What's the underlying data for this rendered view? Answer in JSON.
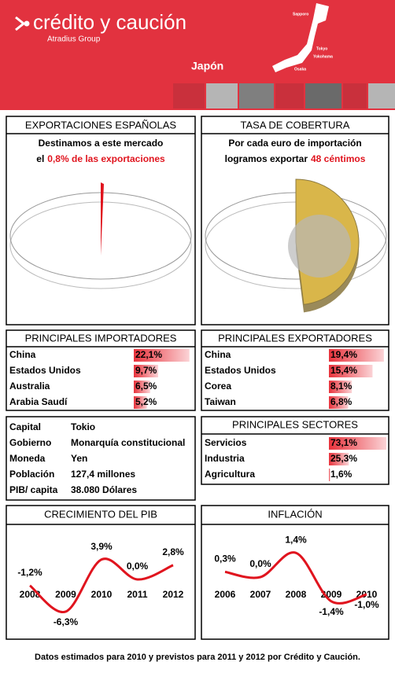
{
  "header": {
    "brand": "crédito y caución",
    "group": "Atradius Group",
    "country": "Japón",
    "cities": [
      "Sapporo",
      "Tokyo",
      "Yokohama",
      "Osaka"
    ]
  },
  "exports_panel": {
    "title": "EXPORTACIONES ESPAÑOLAS",
    "text_line1": "Destinamos a este mercado",
    "text_line2": "el",
    "highlight": "0,8% de las exportaciones"
  },
  "coverage_panel": {
    "title": "TASA DE COBERTURA",
    "text_line1": "Por cada euro de importación",
    "text_line2": "logramos exportar",
    "highlight": "48 céntimos"
  },
  "info_table": {
    "rows": [
      [
        "Capital",
        "Tokio"
      ],
      [
        "Gobierno",
        "Monarquía constitucional"
      ],
      [
        "Moneda",
        "Yen"
      ],
      [
        "Población",
        "127,4 millones"
      ],
      [
        "PIB/ capita",
        "38.080 Dólares"
      ]
    ]
  },
  "chart_data": [
    {
      "type": "pie",
      "values": [
        0.8
      ],
      "color": "#e0141e"
    },
    {
      "type": "pie",
      "values": [
        48
      ],
      "color": "#d9b64a"
    },
    {
      "type": "bar",
      "orientation": "horizontal",
      "title": "PRINCIPALES IMPORTADORES",
      "categories": [
        "China",
        "Estados Unidos",
        "Australia",
        "Arabia Saudí"
      ],
      "values": [
        22.1,
        9.7,
        6.5,
        5.2
      ],
      "value_labels": [
        "22,1%",
        "9,7%",
        "6,5%",
        "5,2%"
      ],
      "color": "#e8333c"
    },
    {
      "type": "bar",
      "orientation": "horizontal",
      "title": "PRINCIPALES EXPORTADORES",
      "categories": [
        "China",
        "Estados Unidos",
        "Corea",
        "Taiwan"
      ],
      "values": [
        19.4,
        15.4,
        8.1,
        6.8
      ],
      "value_labels": [
        "19,4%",
        "15,4%",
        "8,1%",
        "6,8%"
      ],
      "color": "#e8333c"
    },
    {
      "type": "bar",
      "orientation": "horizontal",
      "title": "PRINCIPALES SECTORES",
      "categories": [
        "Servicios",
        "Industria",
        "Agricultura"
      ],
      "values": [
        73.1,
        25.3,
        1.6
      ],
      "value_labels": [
        "73,1%",
        "25,3%",
        "1,6%"
      ],
      "color": "#e8333c"
    },
    {
      "type": "line",
      "title": "CRECIMIENTO DEL PIB",
      "categories": [
        "2008",
        "2009",
        "2010",
        "2011",
        "2012"
      ],
      "values": [
        -1.2,
        -6.3,
        3.9,
        0.0,
        2.8
      ],
      "value_labels": [
        "-1,2%",
        "-6,3%",
        "3,9%",
        "0,0%",
        "2,8%"
      ],
      "ylim": [
        -8,
        5
      ],
      "color": "#e0141e"
    },
    {
      "type": "line",
      "title": "INFLACIÓN",
      "categories": [
        "2006",
        "2007",
        "2008",
        "2009",
        "2010"
      ],
      "values": [
        0.3,
        0.0,
        1.4,
        -1.4,
        -1.0
      ],
      "value_labels": [
        "0,3%",
        "0,0%",
        "1,4%",
        "-1,4%",
        "-1,0%"
      ],
      "ylim": [
        -2,
        2
      ],
      "color": "#e0141e"
    }
  ],
  "footer": "Datos estimados para 2010 y previstos para 2011  y 2012 por Crédito y Caución."
}
